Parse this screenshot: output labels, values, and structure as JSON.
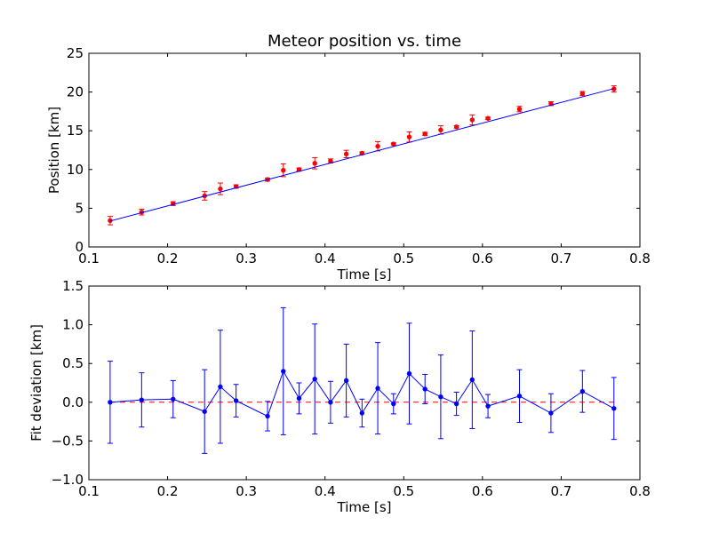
{
  "chart_data": [
    {
      "type": "scatter",
      "title": "Meteor position vs. time",
      "xlabel": "Time [s]",
      "ylabel": "Position [km]",
      "xlim": [
        0.1,
        0.8
      ],
      "ylim": [
        0,
        25
      ],
      "xticks": [
        "0.1",
        "0.2",
        "0.3",
        "0.4",
        "0.5",
        "0.6",
        "0.7",
        "0.8"
      ],
      "yticks": [
        "0",
        "5",
        "10",
        "15",
        "20",
        "25"
      ],
      "grid": false,
      "series": [
        {
          "marker": "errorbar-points",
          "color": "#ff0000",
          "x": [
            0.127,
            0.167,
            0.207,
            0.247,
            0.267,
            0.287,
            0.327,
            0.347,
            0.367,
            0.387,
            0.407,
            0.427,
            0.447,
            0.467,
            0.487,
            0.507,
            0.527,
            0.547,
            0.567,
            0.587,
            0.607,
            0.647,
            0.687,
            0.727,
            0.767
          ],
          "y": [
            3.4,
            4.5,
            5.6,
            6.6,
            7.5,
            7.8,
            8.7,
            9.9,
            10.0,
            10.8,
            11.1,
            12.0,
            12.1,
            13.0,
            13.3,
            14.2,
            14.6,
            15.1,
            15.5,
            16.4,
            16.6,
            17.8,
            18.5,
            19.8,
            20.4
          ],
          "yerr": [
            0.54,
            0.37,
            0.25,
            0.55,
            0.75,
            0.22,
            0.2,
            0.83,
            0.2,
            0.72,
            0.27,
            0.48,
            0.18,
            0.6,
            0.14,
            0.66,
            0.2,
            0.54,
            0.15,
            0.64,
            0.15,
            0.35,
            0.25,
            0.27,
            0.4
          ]
        },
        {
          "marker": "line",
          "color": "#0000ff",
          "x": [
            0.127,
            0.767
          ],
          "y": [
            3.35,
            20.45
          ]
        }
      ]
    },
    {
      "type": "line",
      "xlabel": "Time [s]",
      "ylabel": "Fit deviation [km]",
      "xlim": [
        0.1,
        0.8
      ],
      "ylim": [
        -1.0,
        1.5
      ],
      "xticks": [
        "0.1",
        "0.2",
        "0.3",
        "0.4",
        "0.5",
        "0.6",
        "0.7",
        "0.8"
      ],
      "yticks": [
        "−1.0",
        "−0.5",
        "0.0",
        "0.5",
        "1.0",
        "1.5"
      ],
      "grid": false,
      "reference_line": {
        "y": 0.0,
        "color": "#ff0000",
        "style": "dashed",
        "x": [
          0.127,
          0.767
        ]
      },
      "series": [
        {
          "marker": "errorbar-line",
          "color": "#0000ff",
          "x": [
            0.127,
            0.167,
            0.207,
            0.247,
            0.267,
            0.287,
            0.327,
            0.347,
            0.367,
            0.387,
            0.407,
            0.427,
            0.447,
            0.467,
            0.487,
            0.507,
            0.527,
            0.547,
            0.567,
            0.587,
            0.607,
            0.647,
            0.687,
            0.727,
            0.767
          ],
          "y": [
            0.0,
            0.03,
            0.04,
            -0.12,
            0.2,
            0.02,
            -0.18,
            0.4,
            0.05,
            0.3,
            0.0,
            0.28,
            -0.14,
            0.18,
            -0.02,
            0.37,
            0.17,
            0.07,
            -0.02,
            0.29,
            -0.05,
            0.08,
            -0.14,
            0.14,
            -0.08
          ],
          "yerr": [
            0.53,
            0.35,
            0.24,
            0.54,
            0.73,
            0.21,
            0.19,
            0.82,
            0.2,
            0.71,
            0.27,
            0.47,
            0.18,
            0.59,
            0.13,
            0.65,
            0.19,
            0.54,
            0.15,
            0.63,
            0.15,
            0.34,
            0.25,
            0.27,
            0.4
          ]
        }
      ]
    }
  ]
}
